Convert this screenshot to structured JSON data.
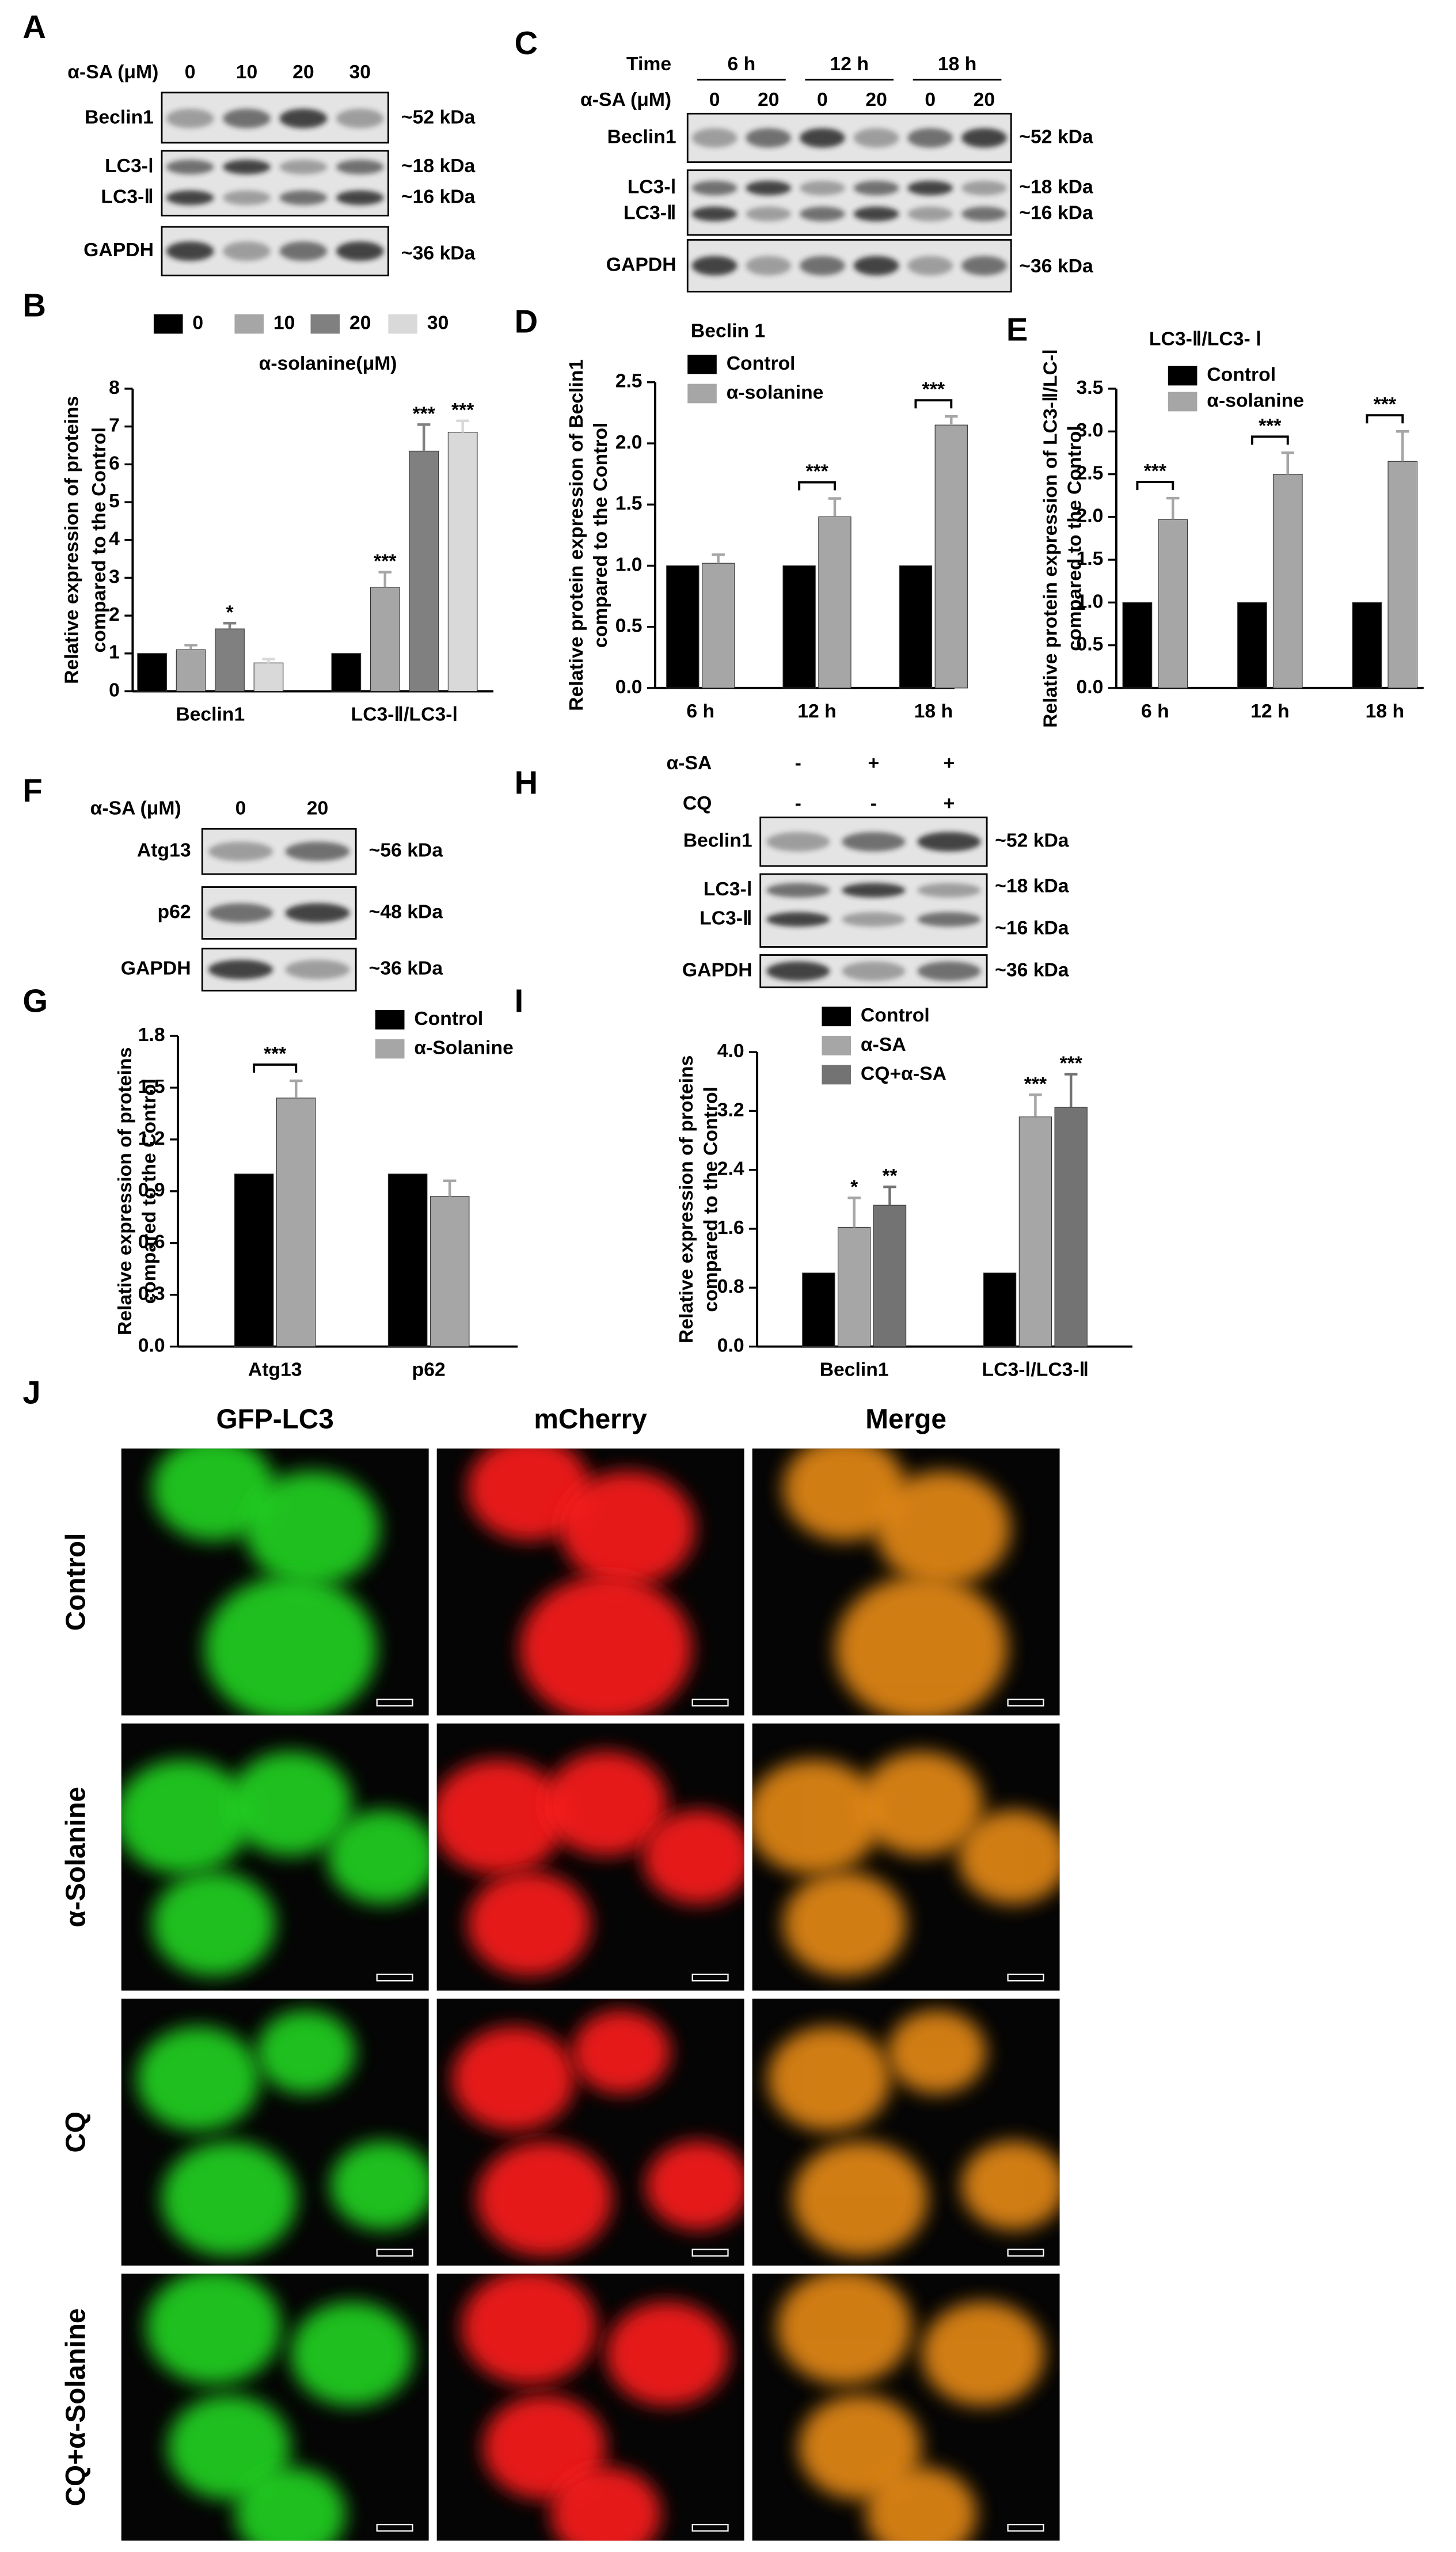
{
  "chart_data": [
    {
      "type": "bar",
      "panel": "B",
      "categories": [
        "Beclin1",
        "LC3-Ⅱ/LC3-Ⅰ"
      ],
      "legend_title": "α-solanine(μM)",
      "ylabel": [
        "Relative expression of proteins",
        "compared to the Control"
      ],
      "series": [
        {
          "name": "0",
          "color": "#000000",
          "values": [
            1,
            1
          ],
          "errors": [
            null,
            null
          ],
          "significance": [
            null,
            null
          ]
        },
        {
          "name": "10",
          "color": "#a6a6a6",
          "values": [
            1.1,
            2.75
          ],
          "errors": [
            0.12,
            0.4
          ],
          "significance": [
            null,
            "***"
          ]
        },
        {
          "name": "20",
          "color": "#808080",
          "values": [
            1.65,
            6.35
          ],
          "errors": [
            0.15,
            0.7
          ],
          "significance": [
            "*",
            "***"
          ]
        },
        {
          "name": "30",
          "color": "#d9d9d9",
          "values": [
            0.75,
            6.85
          ],
          "errors": [
            0.1,
            0.3
          ],
          "significance": [
            null,
            "***"
          ]
        }
      ],
      "ylim": [
        0,
        8
      ],
      "yticks": [
        0,
        1,
        2,
        3,
        4,
        5,
        6,
        7,
        8
      ]
    },
    {
      "type": "bar",
      "panel": "D",
      "title": "Beclin 1",
      "categories": [
        "6 h",
        "12 h",
        "18 h"
      ],
      "ylabel": [
        "Relative protein expression of Beclin1",
        "compared to the Control"
      ],
      "series": [
        {
          "name": "Control",
          "color": "#000000",
          "values": [
            1,
            1,
            1
          ],
          "errors": [
            null,
            null,
            null
          ]
        },
        {
          "name": "α-solanine",
          "color": "#a6a6a6",
          "values": [
            1.02,
            1.4,
            2.15
          ],
          "errors": [
            0.07,
            0.15,
            0.07
          ]
        }
      ],
      "brackets": [
        null,
        "***",
        "***"
      ],
      "ylim": [
        0,
        2.5
      ],
      "yticks": [
        {
          "value": 0,
          "label": "0.0"
        },
        0.5,
        {
          "value": 1,
          "label": "1.0"
        },
        1.5,
        {
          "value": 2,
          "label": "2.0"
        },
        2.5
      ]
    },
    {
      "type": "bar",
      "panel": "E",
      "title": "LC3-Ⅱ/LC3- Ⅰ",
      "categories": [
        "6 h",
        "12 h",
        "18 h"
      ],
      "ylabel": [
        "Relative protein expression of LC3-Ⅱ/LC-Ⅰ",
        "compared to the Control"
      ],
      "series": [
        {
          "name": "Control",
          "color": "#000000",
          "values": [
            1,
            1,
            1
          ],
          "errors": [
            null,
            null,
            null
          ]
        },
        {
          "name": "α-solanine",
          "color": "#a6a6a6",
          "values": [
            1.97,
            2.5,
            2.65
          ],
          "errors": [
            0.25,
            0.25,
            0.35
          ]
        }
      ],
      "brackets": [
        "***",
        "***",
        "***"
      ],
      "ylim": [
        0,
        3.5
      ],
      "yticks": [
        {
          "value": 0,
          "label": "0.0"
        },
        0.5,
        {
          "value": 1,
          "label": "1.0"
        },
        1.5,
        {
          "value": 2,
          "label": "2.0"
        },
        2.5,
        {
          "value": 3,
          "label": "3.0"
        },
        3.5
      ]
    },
    {
      "type": "bar",
      "panel": "G",
      "categories": [
        "Atg13",
        "p62"
      ],
      "ylabel": [
        "Relative expression of proteins",
        "compared to the Control"
      ],
      "series": [
        {
          "name": "Control",
          "color": "#000000",
          "values": [
            1,
            1
          ],
          "errors": [
            null,
            null
          ]
        },
        {
          "name": "α-Solanine",
          "color": "#a6a6a6",
          "values": [
            1.44,
            0.87
          ],
          "errors": [
            0.1,
            0.09
          ]
        }
      ],
      "brackets": [
        "***",
        null
      ],
      "ylim": [
        0,
        1.8
      ],
      "yticks": [
        {
          "value": 0,
          "label": "0.0"
        },
        0.3,
        0.6,
        0.9,
        1.2,
        1.5,
        1.8
      ]
    },
    {
      "type": "bar",
      "panel": "I",
      "categories": [
        "Beclin1",
        "LC3-Ⅰ/LC3-Ⅱ"
      ],
      "ylabel": [
        "Relative expression of proteins",
        "compared to the Control"
      ],
      "series": [
        {
          "name": "Control",
          "color": "#000000",
          "values": [
            1,
            1
          ],
          "errors": [
            null,
            null
          ],
          "significance": [
            null,
            null
          ]
        },
        {
          "name": "α-SA",
          "color": "#a6a6a6",
          "values": [
            1.62,
            3.12
          ],
          "errors": [
            0.4,
            0.3
          ],
          "significance": [
            "*",
            "***"
          ]
        },
        {
          "name": "CQ+α-SA",
          "color": "#737373",
          "values": [
            1.92,
            3.25
          ],
          "errors": [
            0.25,
            0.45
          ],
          "significance": [
            "**",
            "***"
          ]
        }
      ],
      "ylim": [
        0,
        4
      ],
      "yticks": [
        {
          "value": 0,
          "label": "0.0"
        },
        0.8,
        1.6,
        2.4,
        3.2,
        {
          "value": 4,
          "label": "4.0"
        }
      ]
    }
  ],
  "blots": [
    {
      "panel": "A",
      "header": [
        {
          "label": "α-SA (μM)",
          "lanes": [
            "0",
            "10",
            "20",
            "30"
          ]
        }
      ],
      "rows": [
        {
          "labels": [
            "Beclin1"
          ],
          "sizes": [
            "~52 kDa"
          ]
        },
        {
          "labels": [
            "LC3-Ⅰ",
            "LC3-Ⅱ"
          ],
          "sizes": [
            "~18 kDa",
            "~16 kDa"
          ]
        },
        {
          "labels": [
            "GAPDH"
          ],
          "sizes": [
            "~36 kDa"
          ]
        }
      ]
    },
    {
      "panel": "C",
      "groups": {
        "label": "Time",
        "names": [
          "6 h",
          "12 h",
          "18 h"
        ]
      },
      "header": [
        {
          "label": "α-SA (μM)",
          "lanes": [
            "0",
            "20",
            "0",
            "20",
            "0",
            "20"
          ]
        }
      ],
      "rows": [
        {
          "labels": [
            "Beclin1"
          ],
          "sizes": [
            "~52 kDa"
          ]
        },
        {
          "labels": [
            "LC3-Ⅰ",
            "LC3-Ⅱ"
          ],
          "sizes": [
            "~18 kDa",
            "~16 kDa"
          ]
        },
        {
          "labels": [
            "GAPDH"
          ],
          "sizes": [
            "~36 kDa"
          ]
        }
      ]
    },
    {
      "panel": "F",
      "header": [
        {
          "label": "α-SA (μM)",
          "lanes": [
            "0",
            "20"
          ]
        }
      ],
      "rows": [
        {
          "labels": [
            "Atg13"
          ],
          "sizes": [
            "~56 kDa"
          ]
        },
        {
          "labels": [
            "p62"
          ],
          "sizes": [
            "~48 kDa"
          ]
        },
        {
          "labels": [
            "GAPDH"
          ],
          "sizes": [
            "~36 kDa"
          ]
        }
      ]
    },
    {
      "panel": "H",
      "header": [
        {
          "label": "α-SA",
          "lanes": [
            "-",
            "+",
            "+"
          ]
        },
        {
          "label": "CQ",
          "lanes": [
            "-",
            "-",
            "+"
          ]
        }
      ],
      "rows": [
        {
          "labels": [
            "Beclin1"
          ],
          "sizes": [
            "~52 kDa"
          ]
        },
        {
          "labels": [
            "LC3-Ⅰ",
            "LC3-Ⅱ"
          ],
          "sizes": [
            "~18 kDa",
            "~16 kDa"
          ]
        },
        {
          "labels": [
            "GAPDH"
          ],
          "sizes": [
            "~36 kDa"
          ]
        }
      ]
    }
  ],
  "fluorescence": {
    "panel": "J",
    "columns": [
      "GFP-LC3",
      "mCherry",
      "Merge"
    ],
    "rows": [
      "Control",
      "α-Solanine",
      "CQ",
      "CQ+α-Solanine"
    ]
  }
}
